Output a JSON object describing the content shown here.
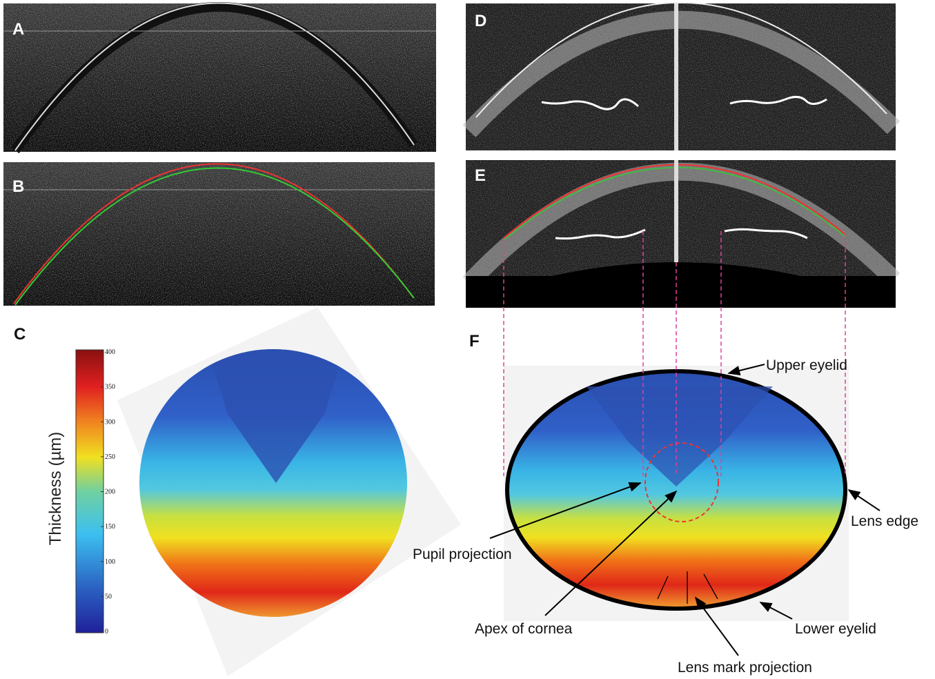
{
  "panels": {
    "a": "A",
    "b": "B",
    "c": "C",
    "d": "D",
    "e": "E",
    "f": "F"
  },
  "colorbar": {
    "title": "Thickness (µm)",
    "ticks": [
      0,
      50,
      100,
      150,
      200,
      250,
      300,
      350,
      400
    ]
  },
  "annotations": {
    "upper_eyelid": "Upper eyelid",
    "lens_edge": "Lens edge",
    "pupil_projection": "Pupil projection",
    "apex_of_cornea": "Apex of cornea",
    "lens_mark_projection": "Lens mark projection",
    "lower_eyelid": "Lower eyelid"
  }
}
